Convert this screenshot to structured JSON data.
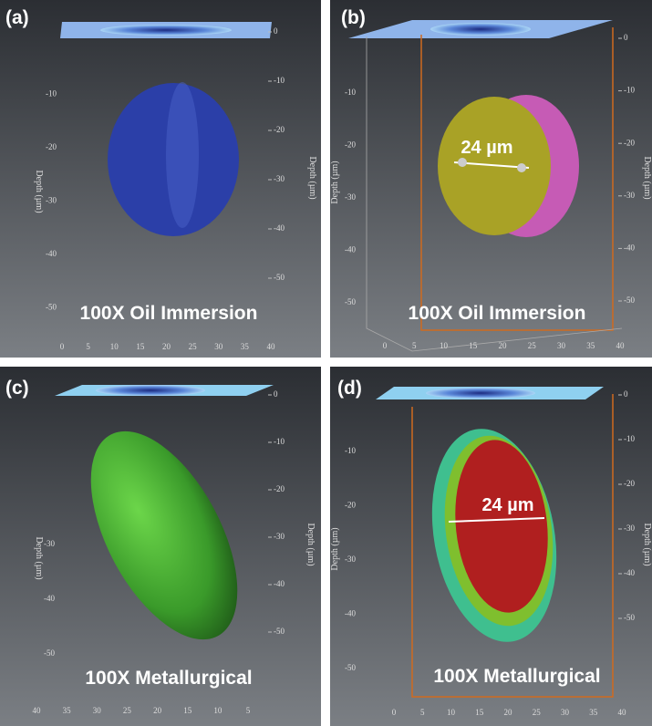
{
  "panels": [
    {
      "label": "(a)",
      "caption": "100X Oil Immersion",
      "left_axis_title": "Depth (µm)",
      "right_axis_title": "Depth (µm)",
      "left_ticks": [
        -10,
        -20,
        -30,
        -40,
        -50
      ],
      "right_ticks": [
        0,
        -10,
        -20,
        -30,
        -40,
        -50
      ],
      "bottom_ticks": [
        0,
        5,
        10,
        15,
        20,
        25,
        30,
        35,
        40
      ]
    },
    {
      "label": "(b)",
      "caption": "100X Oil Immersion",
      "measurement": "24 µm",
      "left_axis_title": "Depth (µm)",
      "right_axis_title": "Depth (µm)",
      "left_ticks": [
        -10,
        -20,
        -30,
        -40,
        -50
      ],
      "right_ticks": [
        0,
        -10,
        -20,
        -30,
        -40,
        -50
      ],
      "bottom_ticks": [
        0,
        5,
        10,
        15,
        20,
        25,
        30,
        35,
        40
      ]
    },
    {
      "label": "(c)",
      "caption": "100X Metallurgical",
      "left_axis_title": "Depth (µm)",
      "right_axis_title": "Depth (µm)",
      "left_ticks": [
        -30,
        -40,
        -50
      ],
      "right_ticks": [
        0,
        -10,
        -20,
        -30,
        -40,
        -50
      ],
      "bottom_ticks": [
        40,
        35,
        30,
        25,
        20,
        15,
        10,
        5
      ]
    },
    {
      "label": "(d)",
      "caption": "100X Metallurgical",
      "measurement": "24 µm",
      "left_axis_title": "Depth (µm)",
      "right_axis_title": "Depth (µm)",
      "left_ticks": [
        -10,
        -20,
        -30,
        -40,
        -50
      ],
      "right_ticks": [
        0,
        -10,
        -20,
        -30,
        -40,
        -50
      ],
      "bottom_ticks": [
        0,
        5,
        10,
        15,
        20,
        25,
        30,
        35,
        40
      ]
    }
  ]
}
